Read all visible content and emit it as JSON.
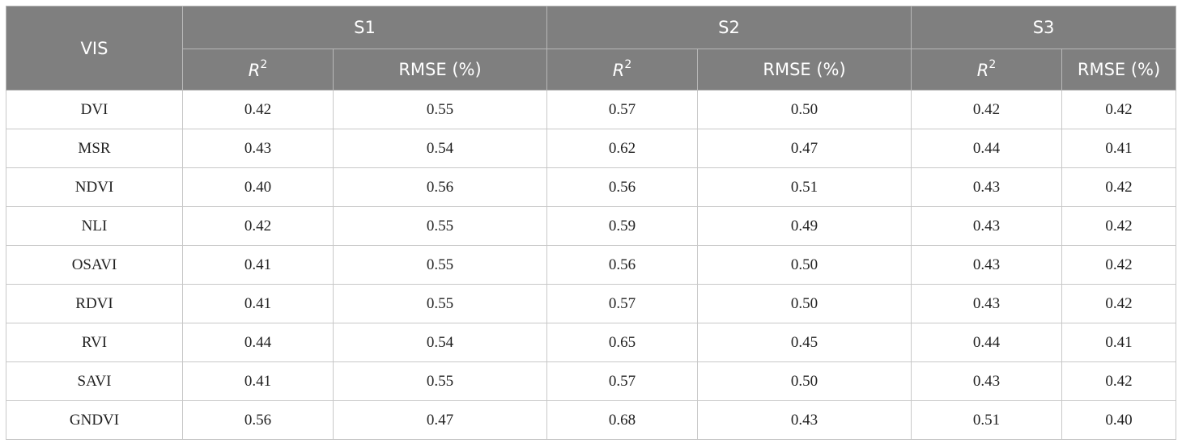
{
  "table": {
    "vis_header": "VIS",
    "groups": [
      "S1",
      "S2",
      "S3"
    ],
    "metrics": [
      {
        "base": "R",
        "sup": "2"
      },
      {
        "label": "RMSE (%)"
      }
    ],
    "rows": [
      {
        "vis": "DVI",
        "values": [
          "0.42",
          "0.55",
          "0.57",
          "0.50",
          "0.42",
          "0.42"
        ]
      },
      {
        "vis": "MSR",
        "values": [
          "0.43",
          "0.54",
          "0.62",
          "0.47",
          "0.44",
          "0.41"
        ]
      },
      {
        "vis": "NDVI",
        "values": [
          "0.40",
          "0.56",
          "0.56",
          "0.51",
          "0.43",
          "0.42"
        ]
      },
      {
        "vis": "NLI",
        "values": [
          "0.42",
          "0.55",
          "0.59",
          "0.49",
          "0.43",
          "0.42"
        ]
      },
      {
        "vis": "OSAVI",
        "values": [
          "0.41",
          "0.55",
          "0.56",
          "0.50",
          "0.43",
          "0.42"
        ]
      },
      {
        "vis": "RDVI",
        "values": [
          "0.41",
          "0.55",
          "0.57",
          "0.50",
          "0.43",
          "0.42"
        ]
      },
      {
        "vis": "RVI",
        "values": [
          "0.44",
          "0.54",
          "0.65",
          "0.45",
          "0.44",
          "0.41"
        ]
      },
      {
        "vis": "SAVI",
        "values": [
          "0.41",
          "0.55",
          "0.57",
          "0.50",
          "0.43",
          "0.42"
        ]
      },
      {
        "vis": "GNDVI",
        "values": [
          "0.56",
          "0.47",
          "0.68",
          "0.43",
          "0.51",
          "0.40"
        ]
      }
    ]
  }
}
